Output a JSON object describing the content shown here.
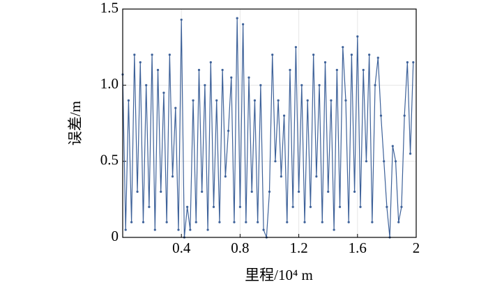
{
  "chart_data": {
    "type": "line",
    "x_label": "里程/10⁴ m",
    "y_label": "误差/m",
    "x": [
      0.0,
      0.02,
      0.04,
      0.06,
      0.08,
      0.1,
      0.12,
      0.14,
      0.16,
      0.18,
      0.2,
      0.22,
      0.24,
      0.26,
      0.28,
      0.3,
      0.32,
      0.34,
      0.36,
      0.38,
      0.4,
      0.42,
      0.44,
      0.46,
      0.48,
      0.5,
      0.52,
      0.54,
      0.56,
      0.58,
      0.6,
      0.62,
      0.64,
      0.66,
      0.68,
      0.7,
      0.72,
      0.74,
      0.76,
      0.78,
      0.8,
      0.82,
      0.84,
      0.86,
      0.88,
      0.9,
      0.92,
      0.94,
      0.96,
      0.98,
      1.0,
      1.02,
      1.04,
      1.06,
      1.08,
      1.1,
      1.12,
      1.14,
      1.16,
      1.18,
      1.2,
      1.22,
      1.24,
      1.26,
      1.28,
      1.3,
      1.32,
      1.34,
      1.36,
      1.38,
      1.4,
      1.42,
      1.44,
      1.46,
      1.48,
      1.5,
      1.52,
      1.54,
      1.56,
      1.58,
      1.6,
      1.62,
      1.64,
      1.66,
      1.68,
      1.7,
      1.72,
      1.74,
      1.76,
      1.78,
      1.8,
      1.82,
      1.84,
      1.86,
      1.88,
      1.9,
      1.92,
      1.94,
      1.96,
      1.98
    ],
    "values": [
      1.07,
      0.05,
      0.9,
      0.1,
      1.2,
      0.3,
      1.15,
      0.1,
      1.0,
      0.2,
      1.2,
      0.05,
      1.1,
      0.3,
      0.95,
      0.1,
      1.2,
      0.4,
      0.85,
      0.05,
      1.43,
      0.0,
      0.2,
      0.05,
      0.9,
      0.1,
      1.1,
      0.3,
      1.0,
      0.05,
      1.15,
      0.2,
      0.9,
      0.1,
      1.1,
      0.4,
      0.7,
      1.05,
      0.1,
      1.44,
      0.2,
      1.4,
      0.1,
      1.05,
      0.3,
      0.9,
      0.1,
      1.0,
      0.05,
      0.0,
      0.3,
      1.2,
      0.5,
      0.9,
      0.4,
      0.8,
      0.1,
      1.1,
      0.2,
      1.25,
      0.3,
      1.0,
      0.1,
      0.9,
      0.2,
      1.2,
      0.4,
      1.0,
      0.1,
      1.15,
      0.3,
      0.9,
      0.05,
      1.1,
      0.2,
      1.25,
      0.9,
      0.1,
      1.2,
      0.3,
      1.32,
      0.2,
      1.1,
      0.5,
      1.2,
      0.1,
      1.0,
      1.18,
      0.8,
      0.5,
      0.2,
      0.0,
      0.6,
      0.5,
      0.1,
      0.2,
      0.8,
      1.15,
      0.55,
      1.15
    ],
    "color": "#3d6199",
    "xlim": [
      0,
      2
    ],
    "xticks": [
      0.4,
      0.8,
      1.2,
      1.6,
      2
    ],
    "ylim": [
      0,
      1.5
    ],
    "yticks": [
      0,
      0.5,
      {
        "value": 1.0,
        "label": "1.0"
      },
      {
        "value": 1.5,
        "label": "1.5"
      }
    ],
    "grid": true
  }
}
